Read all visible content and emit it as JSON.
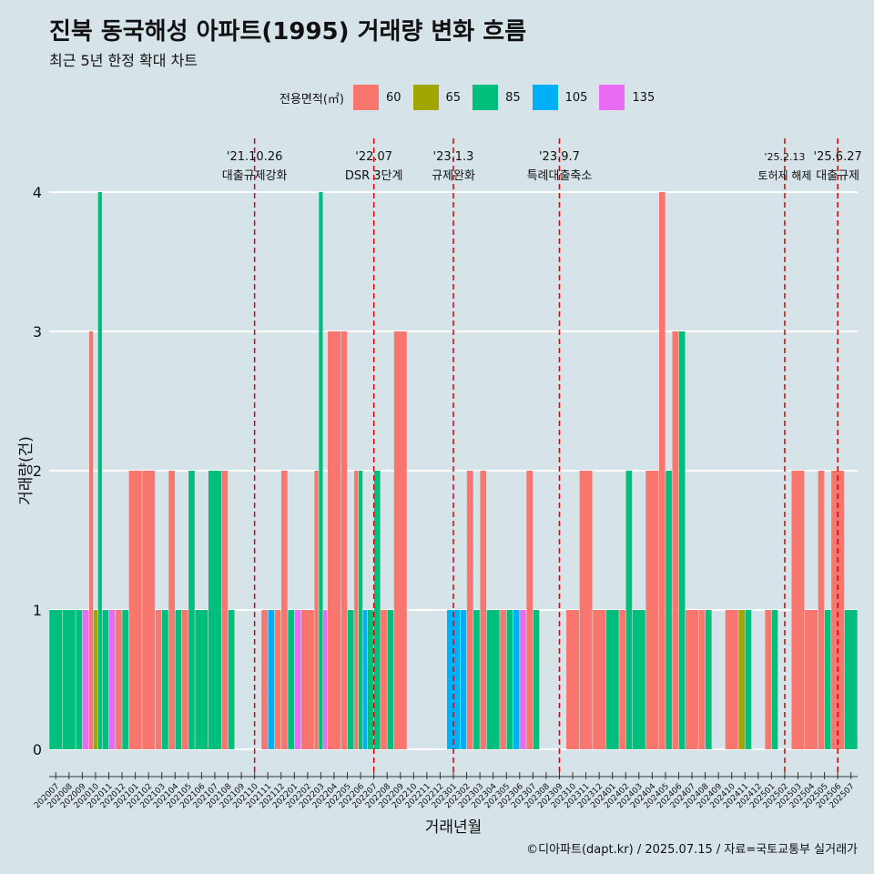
{
  "title": "진북 동국해성 아파트(1995) 거래량 변화 흐름",
  "subtitle": "최근 5년 한정 확대 차트",
  "caption": "©디아파트(dapt.kr) / 2025.07.15 / 자료=국토교통부 실거래가",
  "legend": {
    "title": "전용면적(㎡)",
    "items": [
      {
        "label": "60",
        "color": "#F8766D"
      },
      {
        "label": "65",
        "color": "#A3A500"
      },
      {
        "label": "85",
        "color": "#00BF7D"
      },
      {
        "label": "105",
        "color": "#00B0F6"
      },
      {
        "label": "135",
        "color": "#E76BF3"
      }
    ]
  },
  "chart_data": {
    "type": "bar",
    "xlabel": "거래년월",
    "ylabel": "거래량(건)",
    "ylim": [
      0,
      4
    ],
    "yticks": [
      0,
      1,
      2,
      3,
      4
    ],
    "grid": true,
    "legend_position": "top",
    "categories": [
      "202007",
      "202008",
      "202009",
      "202010",
      "202011",
      "202012",
      "202101",
      "202102",
      "202103",
      "202104",
      "202105",
      "202106",
      "202107",
      "202108",
      "202109",
      "202110",
      "202111",
      "202112",
      "202201",
      "202202",
      "202203",
      "202204",
      "202205",
      "202206",
      "202207",
      "202208",
      "202209",
      "202210",
      "202211",
      "202212",
      "202301",
      "202302",
      "202303",
      "202304",
      "202305",
      "202306",
      "202307",
      "202308",
      "202309",
      "202310",
      "202311",
      "202312",
      "202401",
      "202402",
      "202403",
      "202404",
      "202405",
      "202406",
      "202407",
      "202408",
      "202409",
      "202410",
      "202411",
      "202412",
      "202501",
      "202502",
      "202503",
      "202504",
      "202505",
      "202506",
      "202507"
    ],
    "bars": [
      {
        "month": "202007",
        "area": "85",
        "value": 1
      },
      {
        "month": "202008",
        "area": "85",
        "value": 1
      },
      {
        "month": "202009",
        "area": "85",
        "value": 1
      },
      {
        "month": "202009",
        "area": "135",
        "value": 1
      },
      {
        "month": "202010",
        "area": "60",
        "value": 3
      },
      {
        "month": "202010",
        "area": "65",
        "value": 1
      },
      {
        "month": "202010",
        "area": "85",
        "value": 4
      },
      {
        "month": "202011",
        "area": "85",
        "value": 1
      },
      {
        "month": "202011",
        "area": "135",
        "value": 1
      },
      {
        "month": "202012",
        "area": "60",
        "value": 1
      },
      {
        "month": "202012",
        "area": "85",
        "value": 1
      },
      {
        "month": "202101",
        "area": "60",
        "value": 2
      },
      {
        "month": "202102",
        "area": "60",
        "value": 2
      },
      {
        "month": "202103",
        "area": "60",
        "value": 1
      },
      {
        "month": "202103",
        "area": "85",
        "value": 1
      },
      {
        "month": "202104",
        "area": "60",
        "value": 2
      },
      {
        "month": "202104",
        "area": "85",
        "value": 1
      },
      {
        "month": "202105",
        "area": "60",
        "value": 1
      },
      {
        "month": "202105",
        "area": "85",
        "value": 2
      },
      {
        "month": "202106",
        "area": "85",
        "value": 1
      },
      {
        "month": "202107",
        "area": "85",
        "value": 2
      },
      {
        "month": "202108",
        "area": "60",
        "value": 2
      },
      {
        "month": "202108",
        "area": "85",
        "value": 1
      },
      {
        "month": "202109",
        "area": "85",
        "value": 0
      },
      {
        "month": "202110",
        "area": "85",
        "value": 0
      },
      {
        "month": "202111",
        "area": "60",
        "value": 1
      },
      {
        "month": "202111",
        "area": "105",
        "value": 1
      },
      {
        "month": "202112",
        "area": "60",
        "value": 1
      },
      {
        "month": "202112",
        "area": "60",
        "value": 2
      },
      {
        "month": "202201",
        "area": "85",
        "value": 1
      },
      {
        "month": "202201",
        "area": "135",
        "value": 1
      },
      {
        "month": "202202",
        "area": "60",
        "value": 1
      },
      {
        "month": "202203",
        "area": "60",
        "value": 2
      },
      {
        "month": "202203",
        "area": "85",
        "value": 4
      },
      {
        "month": "202203",
        "area": "135",
        "value": 1
      },
      {
        "month": "202204",
        "area": "60",
        "value": 3
      },
      {
        "month": "202205",
        "area": "60",
        "value": 3
      },
      {
        "month": "202205",
        "area": "85",
        "value": 1
      },
      {
        "month": "202206",
        "area": "60",
        "value": 2
      },
      {
        "month": "202206",
        "area": "85",
        "value": 2
      },
      {
        "month": "202206",
        "area": "105",
        "value": 1
      },
      {
        "month": "202207",
        "area": "85",
        "value": 1
      },
      {
        "month": "202207",
        "area": "85",
        "value": 2
      },
      {
        "month": "202208",
        "area": "60",
        "value": 1
      },
      {
        "month": "202208",
        "area": "85",
        "value": 1
      },
      {
        "month": "202209",
        "area": "60",
        "value": 3
      },
      {
        "month": "202210",
        "area": "85",
        "value": 0
      },
      {
        "month": "202211",
        "area": "85",
        "value": 0
      },
      {
        "month": "202212",
        "area": "85",
        "value": 0
      },
      {
        "month": "202301",
        "area": "85",
        "value": 0
      },
      {
        "month": "202301",
        "area": "105",
        "value": 1
      },
      {
        "month": "202302",
        "area": "105",
        "value": 1
      },
      {
        "month": "202302",
        "area": "60",
        "value": 2
      },
      {
        "month": "202303",
        "area": "85",
        "value": 1
      },
      {
        "month": "202303",
        "area": "60",
        "value": 2
      },
      {
        "month": "202304",
        "area": "85",
        "value": 1
      },
      {
        "month": "202305",
        "area": "60",
        "value": 1
      },
      {
        "month": "202305",
        "area": "85",
        "value": 1
      },
      {
        "month": "202306",
        "area": "105",
        "value": 1
      },
      {
        "month": "202306",
        "area": "135",
        "value": 1
      },
      {
        "month": "202307",
        "area": "60",
        "value": 2
      },
      {
        "month": "202307",
        "area": "85",
        "value": 1
      },
      {
        "month": "202308",
        "area": "85",
        "value": 0
      },
      {
        "month": "202309",
        "area": "85",
        "value": 0
      },
      {
        "month": "202310",
        "area": "60",
        "value": 1
      },
      {
        "month": "202311",
        "area": "60",
        "value": 2
      },
      {
        "month": "202312",
        "area": "60",
        "value": 1
      },
      {
        "month": "202401",
        "area": "85",
        "value": 1
      },
      {
        "month": "202402",
        "area": "60",
        "value": 1
      },
      {
        "month": "202402",
        "area": "85",
        "value": 2
      },
      {
        "month": "202403",
        "area": "85",
        "value": 1
      },
      {
        "month": "202404",
        "area": "60",
        "value": 2
      },
      {
        "month": "202405",
        "area": "60",
        "value": 4
      },
      {
        "month": "202405",
        "area": "85",
        "value": 2
      },
      {
        "month": "202406",
        "area": "60",
        "value": 3
      },
      {
        "month": "202406",
        "area": "85",
        "value": 3
      },
      {
        "month": "202407",
        "area": "60",
        "value": 1
      },
      {
        "month": "202408",
        "area": "60",
        "value": 1
      },
      {
        "month": "202408",
        "area": "85",
        "value": 1
      },
      {
        "month": "202409",
        "area": "85",
        "value": 0
      },
      {
        "month": "202410",
        "area": "60",
        "value": 1
      },
      {
        "month": "202411",
        "area": "65",
        "value": 1
      },
      {
        "month": "202411",
        "area": "85",
        "value": 1
      },
      {
        "month": "202412",
        "area": "85",
        "value": 0
      },
      {
        "month": "202501",
        "area": "60",
        "value": 1
      },
      {
        "month": "202501",
        "area": "85",
        "value": 1
      },
      {
        "month": "202502",
        "area": "85",
        "value": 0
      },
      {
        "month": "202503",
        "area": "60",
        "value": 2
      },
      {
        "month": "202504",
        "area": "60",
        "value": 1
      },
      {
        "month": "202505",
        "area": "60",
        "value": 2
      },
      {
        "month": "202505",
        "area": "85",
        "value": 1
      },
      {
        "month": "202506",
        "area": "60",
        "value": 2
      },
      {
        "month": "202507",
        "area": "85",
        "value": 1
      }
    ],
    "annotations": [
      {
        "date": "'21.10.26",
        "label": "대출규제강화",
        "at_month": "202110"
      },
      {
        "date": "'22.07",
        "label": "DSR 3단계",
        "at_month": "202207"
      },
      {
        "date": "'23.1.3",
        "label": "규제완화",
        "at_month": "202301"
      },
      {
        "date": "'23.9.7",
        "label": "특례대출축소",
        "at_month": "202309"
      },
      {
        "date": "'25.2.13",
        "label": "토허제 해제",
        "at_month": "202502"
      },
      {
        "date": "'25.6.27",
        "label": "대출규제",
        "at_month": "202506"
      }
    ]
  }
}
